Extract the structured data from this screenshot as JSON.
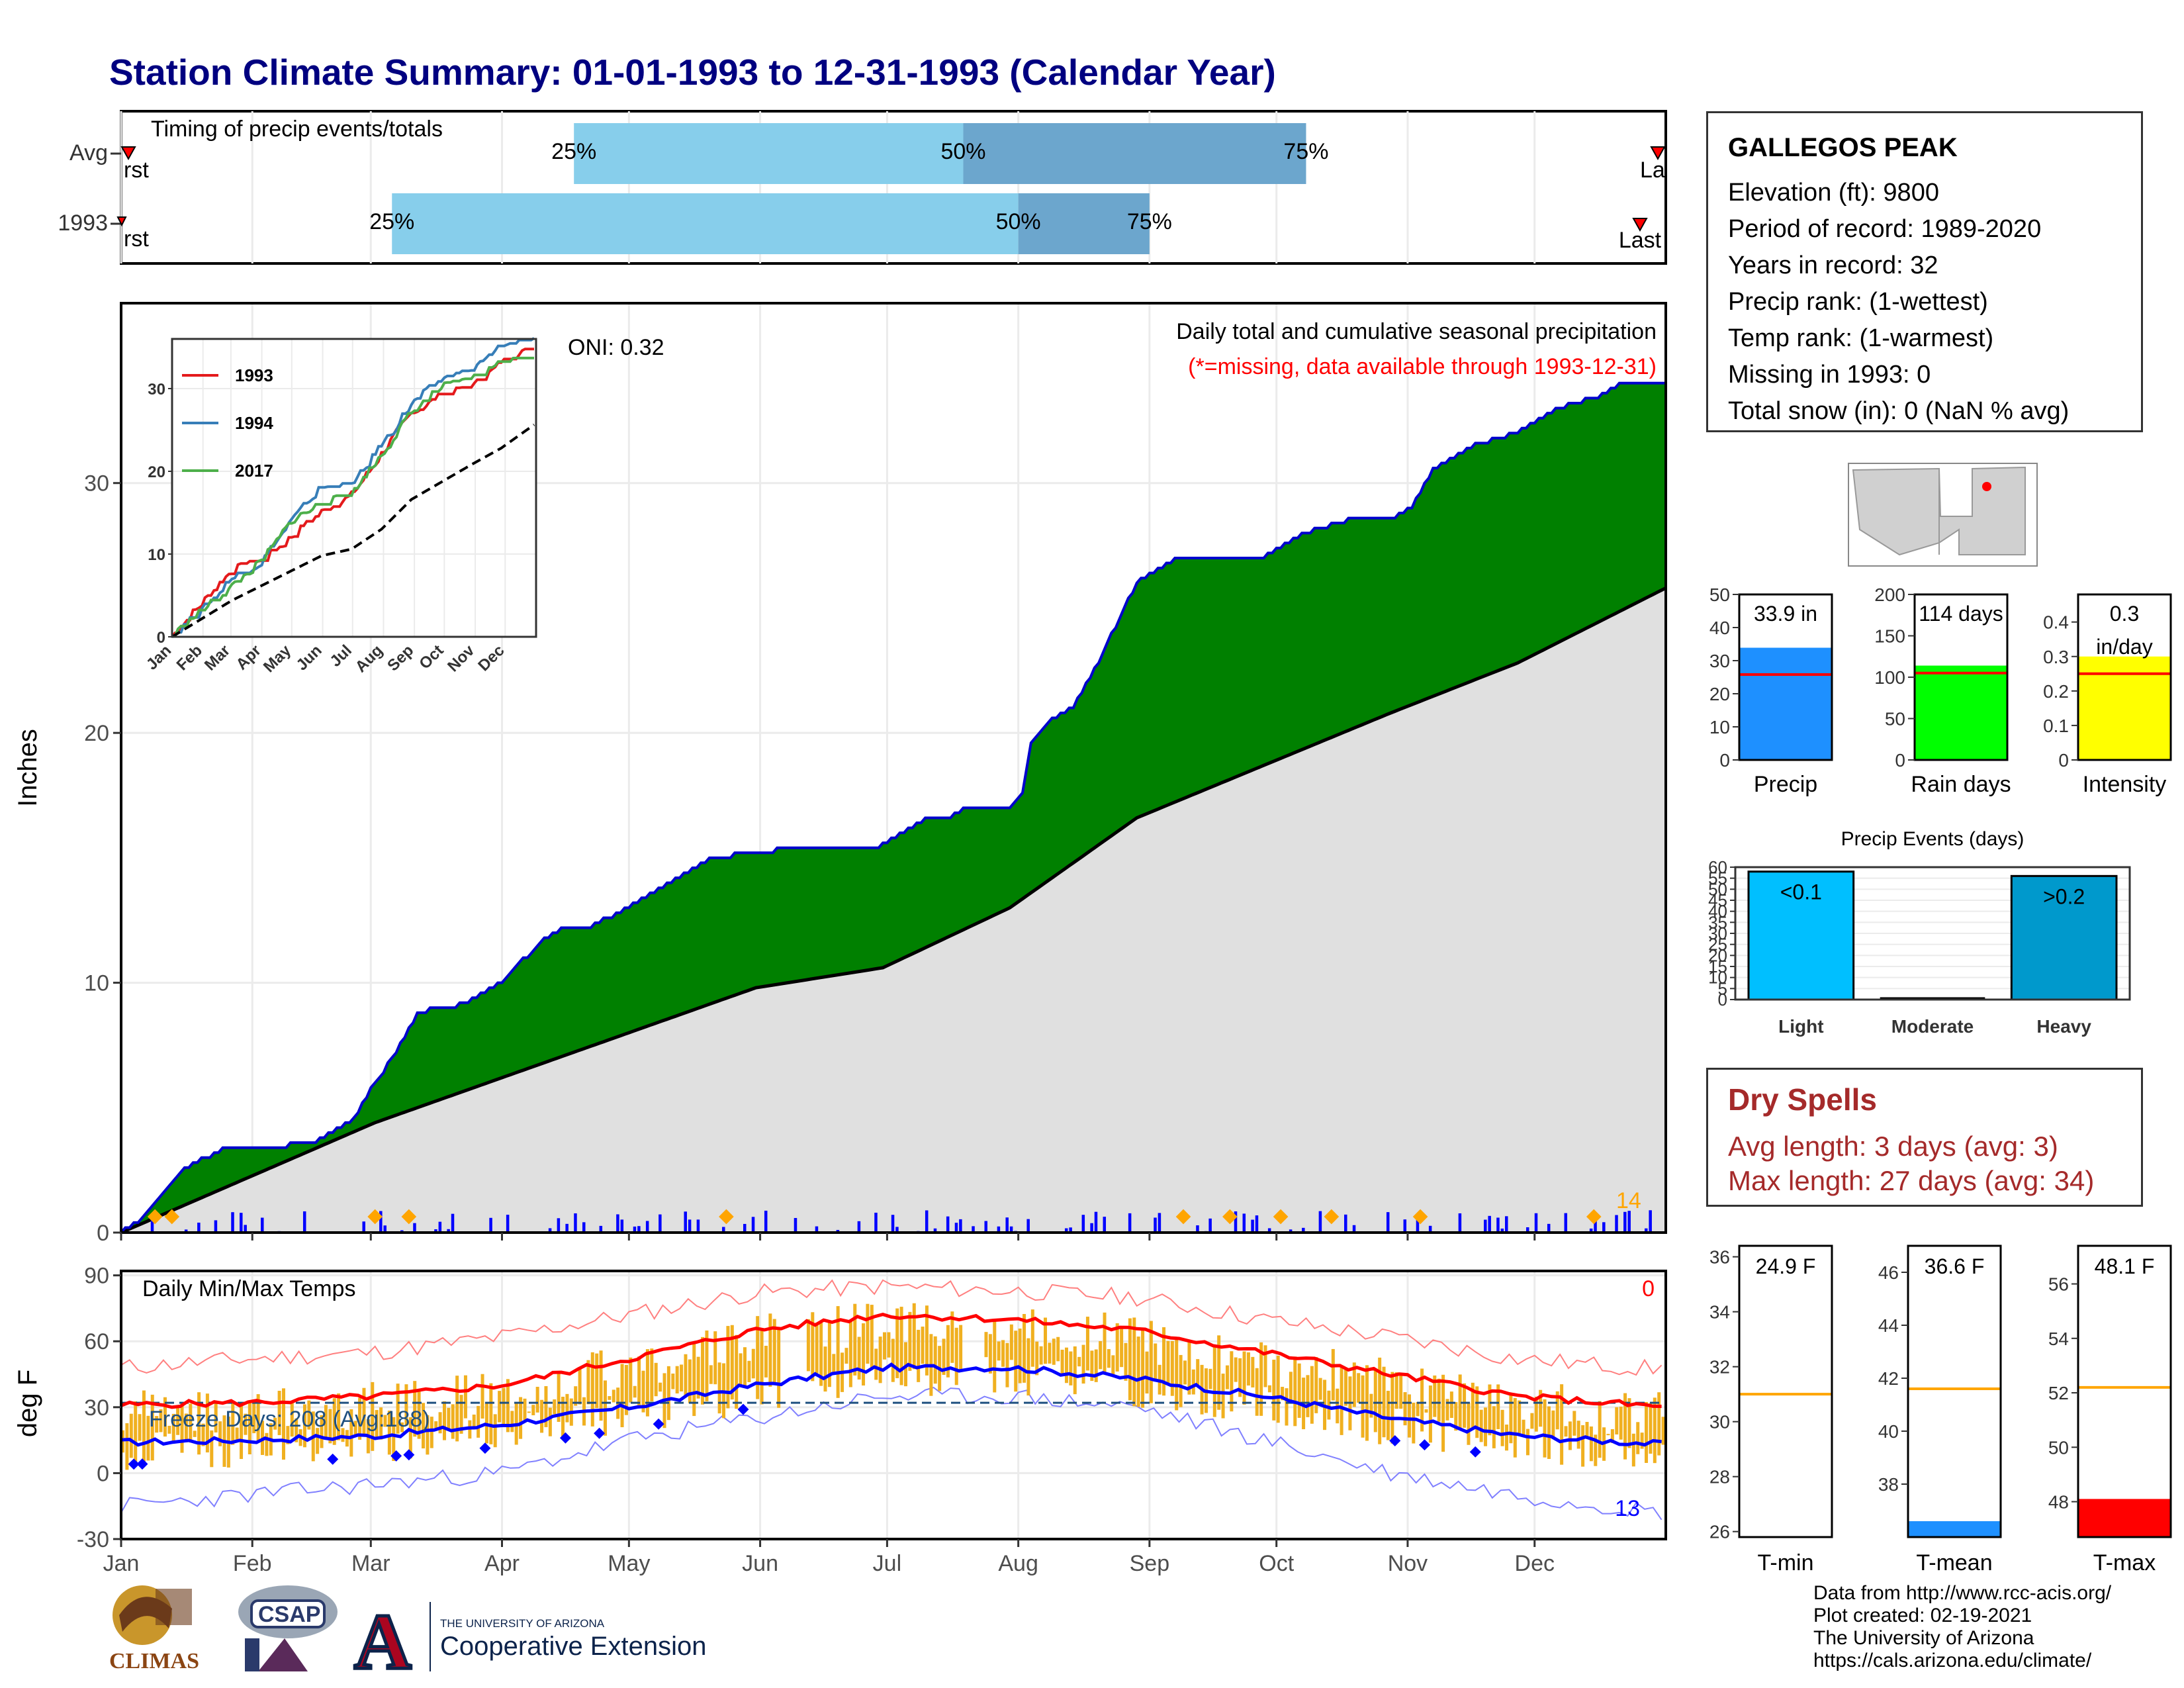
{
  "page": {
    "title": "Station Climate Summary: 01-01-1993 to 12-31-1993 (Calendar Year)"
  },
  "timing": {
    "label": "Timing of precip events/totals",
    "rows": [
      {
        "name": "Avg",
        "first": "First",
        "last": "Last",
        "q25_doy": 107,
        "q50_doy": 199,
        "q75_doy": 280
      },
      {
        "name": "1993",
        "first": "First",
        "last": "Last",
        "q25_doy": 64,
        "q50_doy": 212,
        "q75_doy": 243
      }
    ],
    "q_labels": [
      "25%",
      "50%",
      "75%"
    ],
    "colors": {
      "light": "#87ceeb",
      "dark": "#6ca6cd",
      "marker": "#ff0000"
    }
  },
  "station": {
    "name": "GALLEGOS PEAK",
    "lines": [
      "Elevation (ft): 9800",
      "Period of record: 1989-2020",
      "Years in record: 32",
      "Precip rank:  (1-wettest)",
      "Temp rank:  (1-warmest)",
      "Missing in 1993: 0",
      "Total snow (in): 0 (NaN % avg)"
    ]
  },
  "precip_panel": {
    "ylabel": "Inches",
    "title": "Daily total and cumulative seasonal precipitation",
    "note": "(*=missing, data available through 1993-12-31)",
    "oni": "ONI: 0.32",
    "extreme_count": "14",
    "colors": {
      "cum_fill": "#008000",
      "cum_line": "#0000cd",
      "avg_fill": "#e0e0e0",
      "daily": "#0000ff",
      "extreme": "#ffa500",
      "note": "#ff0000"
    }
  },
  "temp_panel": {
    "ylabel": "deg F",
    "label": "Daily Min/Max Temps",
    "freeze": "Freeze Days: 208 (Avg:188)",
    "hot_count": "0",
    "cold_count": "13",
    "colors": {
      "bar": "#f0b020",
      "max": "#ff0000",
      "min": "#0000ff",
      "freeze": "#1f5080"
    }
  },
  "summary_bars": [
    {
      "name": "Precip",
      "value_label": "33.9 in",
      "value": 33.9,
      "avg": 25.8,
      "ymax": 50,
      "ticks": [
        0,
        10,
        20,
        30,
        40,
        50
      ],
      "color": "#1e90ff"
    },
    {
      "name": "Rain days",
      "value_label": "114 days",
      "value": 114,
      "avg": 105,
      "ymax": 200,
      "ticks": [
        0,
        50,
        100,
        150,
        200
      ],
      "color": "#00ff00"
    },
    {
      "name": "Intensity",
      "value_label": "0.3 in/day",
      "value": 0.3,
      "avg": 0.25,
      "ymax": 0.48,
      "ticks": [
        0.0,
        0.1,
        0.2,
        0.3,
        0.4
      ],
      "color": "#ffff00"
    }
  ],
  "precip_events": {
    "title": "Precip Events (days)",
    "categories": [
      "Light",
      "Moderate",
      "Heavy"
    ],
    "labels": [
      "<0.1",
      "",
      ">0.2"
    ],
    "values": [
      58,
      0,
      56
    ],
    "ymax": 60,
    "ticks": [
      0,
      5,
      10,
      15,
      20,
      25,
      30,
      35,
      40,
      45,
      50,
      55,
      60
    ],
    "colors": [
      "#00bfff",
      "#0080c0",
      "#0099cc"
    ]
  },
  "dry_spells": {
    "title": "Dry Spells",
    "avg_length": "Avg length: 3 days (avg: 3)",
    "max_length": "Max length: 27 days (avg: 34)"
  },
  "temp_bars": [
    {
      "name": "T-min",
      "value_label": "24.9 F",
      "value": 24.9,
      "avg": 31.0,
      "ymin": 25.8,
      "ymax": 36.4,
      "ticks": [
        26,
        28,
        30,
        32,
        34,
        36
      ],
      "color": "#1e90ff"
    },
    {
      "name": "T-mean",
      "value_label": "36.6 F",
      "value": 36.6,
      "avg": 41.6,
      "ymin": 36.0,
      "ymax": 47.0,
      "ticks": [
        38,
        40,
        42,
        44,
        46
      ],
      "color": "#1e90ff"
    },
    {
      "name": "T-max",
      "value_label": "48.1 F",
      "value": 48.1,
      "avg": 52.2,
      "ymin": 46.7,
      "ymax": 57.4,
      "ticks": [
        48,
        50,
        52,
        54,
        56
      ],
      "color": "#ff0000"
    }
  ],
  "credits": {
    "lines": [
      "Data from http://www.rcc-acis.org/",
      "Plot created: 02-19-2021",
      "The University of Arizona",
      "https://cals.arizona.edu/climate/"
    ]
  },
  "logos": {
    "climas": "CLIMAS",
    "csap": "CSAP",
    "uofa_small": "THE UNIVERSITY OF ARIZONA",
    "uofa_big": "Cooperative Extension"
  },
  "chart_data": [
    {
      "type": "area",
      "title": "Daily total and cumulative seasonal precipitation",
      "ylabel": "Inches",
      "xlabel": "",
      "ylim": [
        0,
        37
      ],
      "x_ticks": [
        "Jan",
        "Feb",
        "Mar",
        "Apr",
        "May",
        "Jun",
        "Jul",
        "Aug",
        "Sep",
        "Oct",
        "Nov",
        "Dec"
      ],
      "y_ticks": [
        0,
        10,
        20,
        30
      ],
      "series": [
        {
          "name": "1993",
          "x": [
            0,
            5,
            10,
            15,
            25,
            35,
            45,
            55,
            60,
            65,
            70,
            75,
            80,
            90,
            100,
            105,
            110,
            120,
            130,
            140,
            150,
            160,
            170,
            180,
            190,
            195,
            200,
            210,
            213,
            215,
            220,
            225,
            230,
            240,
            250,
            260,
            270,
            280,
            290,
            300,
            305,
            310,
            320,
            330,
            340,
            350,
            355,
            365
          ],
          "y": [
            0,
            0.5,
            1.5,
            2.6,
            3.4,
            3.4,
            3.6,
            4.5,
            6.0,
            7.2,
            8.8,
            9.0,
            9.1,
            10.0,
            11.8,
            12.2,
            12.2,
            13.0,
            14.0,
            15.0,
            15.2,
            15.4,
            15.4,
            15.5,
            16.5,
            16.6,
            17.0,
            17.0,
            17.5,
            19.5,
            20.5,
            21.0,
            22.5,
            26.0,
            27.0,
            27.0,
            27.0,
            28.0,
            28.5,
            28.5,
            29.0,
            30.5,
            31.5,
            32.0,
            33.0,
            33.5,
            34.0,
            34.0
          ]
        },
        {
          "name": "Avg",
          "x": [
            0,
            30,
            60,
            90,
            120,
            150,
            180,
            210,
            240,
            270,
            300,
            330,
            365
          ],
          "y": [
            0,
            2.2,
            4.4,
            6.2,
            8.0,
            9.8,
            10.6,
            13.0,
            16.6,
            18.7,
            20.8,
            22.8,
            25.8
          ]
        }
      ]
    },
    {
      "type": "line",
      "title": "",
      "ylim": [
        0,
        36
      ],
      "x_ticks": [
        "Jan",
        "Feb",
        "Mar",
        "Apr",
        "May",
        "Jun",
        "Jul",
        "Aug",
        "Sep",
        "Oct",
        "Nov",
        "Dec"
      ],
      "y_ticks": [
        0,
        10,
        20,
        30
      ],
      "series": [
        {
          "name": "1993",
          "x": [
            0,
            30,
            60,
            90,
            120,
            150,
            180,
            210,
            240,
            270,
            300,
            330,
            365
          ],
          "y": [
            0,
            4,
            8,
            9,
            12,
            15,
            17,
            22,
            27,
            29,
            30,
            33,
            35
          ]
        },
        {
          "name": "1994",
          "x": [
            0,
            30,
            60,
            90,
            120,
            150,
            180,
            210,
            240,
            270,
            300,
            330,
            365
          ],
          "y": [
            0,
            3,
            7,
            9,
            14,
            18,
            18,
            23,
            28,
            31,
            32,
            35,
            36
          ]
        },
        {
          "name": "2017",
          "x": [
            0,
            30,
            60,
            90,
            120,
            150,
            180,
            210,
            240,
            270,
            300,
            330,
            365
          ],
          "y": [
            0,
            3,
            6,
            9,
            14,
            16,
            17,
            22,
            27,
            30,
            31,
            33,
            34
          ]
        },
        {
          "name": "Avg",
          "x": [
            0,
            30,
            60,
            90,
            120,
            150,
            180,
            210,
            240,
            270,
            300,
            330,
            365
          ],
          "y": [
            0,
            2.2,
            4.4,
            6.2,
            8.0,
            9.8,
            10.6,
            13.0,
            16.6,
            18.7,
            20.8,
            22.8,
            25.8
          ]
        }
      ]
    },
    {
      "type": "line",
      "title": "Daily Min/Max Temps",
      "ylabel": "deg F",
      "ylim": [
        -30,
        92
      ],
      "x_ticks": [
        "Jan",
        "Feb",
        "Mar",
        "Apr",
        "May",
        "Jun",
        "Jul",
        "Aug",
        "Sep",
        "Oct",
        "Nov",
        "Dec"
      ],
      "y_ticks": [
        -30,
        0,
        30,
        60,
        90
      ],
      "series": [
        {
          "name": "avg max",
          "x": [
            0,
            30,
            60,
            90,
            120,
            150,
            180,
            210,
            240,
            270,
            300,
            330,
            365
          ],
          "y": [
            31,
            32,
            35,
            40,
            52,
            65,
            72,
            70,
            65,
            55,
            45,
            35,
            30
          ]
        },
        {
          "name": "avg min",
          "x": [
            0,
            30,
            60,
            90,
            120,
            150,
            180,
            210,
            240,
            270,
            300,
            330,
            365
          ],
          "y": [
            14,
            15,
            17,
            22,
            30,
            40,
            48,
            48,
            43,
            35,
            25,
            17,
            13
          ]
        },
        {
          "name": "record max",
          "x": [
            0,
            30,
            60,
            90,
            120,
            150,
            180,
            210,
            240,
            270,
            300,
            330,
            365
          ],
          "y": [
            48,
            52,
            55,
            62,
            72,
            82,
            85,
            83,
            80,
            70,
            62,
            52,
            47
          ]
        },
        {
          "name": "record min",
          "x": [
            0,
            30,
            60,
            90,
            120,
            150,
            180,
            210,
            240,
            270,
            300,
            330,
            365
          ],
          "y": [
            -15,
            -10,
            -5,
            0,
            15,
            25,
            35,
            35,
            30,
            15,
            0,
            -10,
            -18
          ]
        }
      ]
    }
  ]
}
